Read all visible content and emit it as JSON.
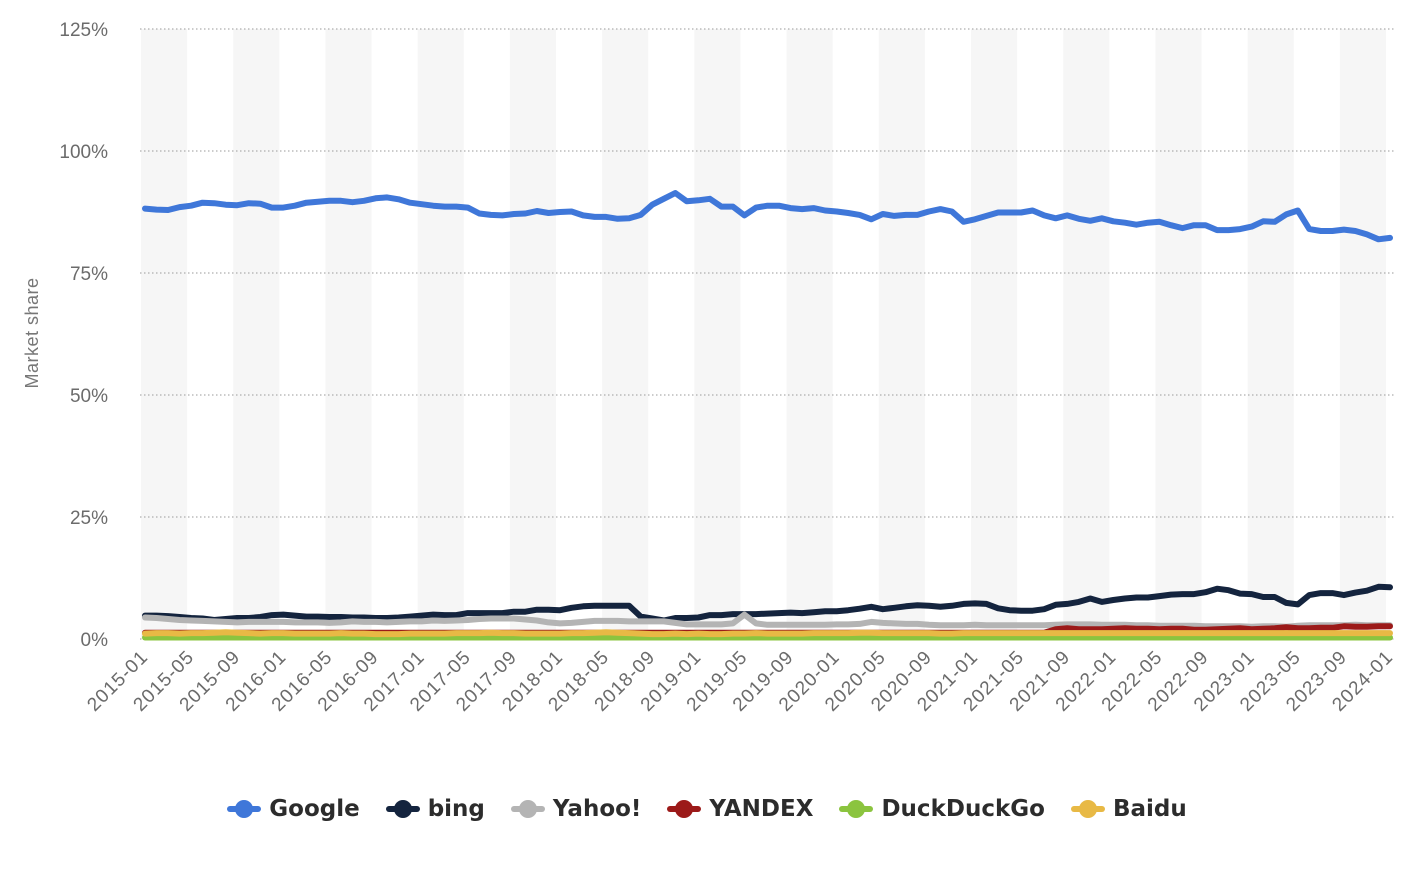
{
  "chart_data": {
    "type": "line",
    "title": "",
    "xlabel": "",
    "ylabel": "Market share",
    "ylim": [
      0,
      125
    ],
    "yticks": [
      "0%",
      "25%",
      "50%",
      "75%",
      "100%",
      "125%"
    ],
    "x_tick_labels": [
      "2015-01",
      "2015-05",
      "2015-09",
      "2016-01",
      "2016-05",
      "2016-09",
      "2017-01",
      "2017-05",
      "2017-09",
      "2018-01",
      "2018-05",
      "2018-09",
      "2019-01",
      "2019-05",
      "2019-09",
      "2020-01",
      "2020-05",
      "2020-09",
      "2021-01",
      "2021-05",
      "2021-09",
      "2022-01",
      "2022-05",
      "2022-09",
      "2023-01",
      "2023-05",
      "2023-09",
      "2024-01"
    ],
    "grid": true,
    "legend_position": "bottom",
    "series": [
      {
        "name": "Google",
        "color": "#3f77d9",
        "values": [
          88.2,
          88.0,
          87.9,
          88.5,
          88.8,
          89.4,
          89.3,
          89.0,
          88.9,
          89.3,
          89.2,
          88.4,
          88.4,
          88.8,
          89.4,
          89.6,
          89.8,
          89.8,
          89.5,
          89.8,
          90.3,
          90.5,
          90.1,
          89.4,
          89.1,
          88.8,
          88.6,
          88.6,
          88.4,
          87.2,
          86.9,
          86.8,
          87.1,
          87.2,
          87.7,
          87.3,
          87.5,
          87.6,
          86.8,
          86.5,
          86.5,
          86.1,
          86.2,
          86.9,
          89.0,
          90.2,
          91.4,
          89.7,
          89.9,
          90.2,
          88.6,
          88.6,
          86.8,
          88.4,
          88.8,
          88.8,
          88.3,
          88.1,
          88.3,
          87.8,
          87.6,
          87.3,
          86.9,
          86.0,
          87.1,
          86.7,
          86.9,
          86.9,
          87.6,
          88.1,
          87.6,
          85.5,
          86.0,
          86.7,
          87.4,
          87.4,
          87.4,
          87.8,
          86.8,
          86.2,
          86.8,
          86.1,
          85.7,
          86.2,
          85.6,
          85.3,
          84.9,
          85.3,
          85.5,
          84.8,
          84.2,
          84.8,
          84.8,
          83.8,
          83.8,
          84.0,
          84.5,
          85.6,
          85.5,
          87.0,
          87.8,
          84.0,
          83.6,
          83.6,
          83.9,
          83.6,
          82.9,
          81.9,
          82.2
        ]
      },
      {
        "name": "bing",
        "color": "#14243e",
        "values": [
          4.8,
          4.8,
          4.7,
          4.5,
          4.3,
          4.2,
          3.9,
          4.1,
          4.3,
          4.3,
          4.5,
          4.9,
          5.0,
          4.8,
          4.6,
          4.6,
          4.5,
          4.5,
          4.4,
          4.4,
          4.3,
          4.3,
          4.4,
          4.6,
          4.8,
          5.0,
          4.9,
          4.9,
          5.3,
          5.3,
          5.3,
          5.3,
          5.6,
          5.6,
          6.0,
          6.0,
          5.9,
          6.4,
          6.7,
          6.8,
          6.8,
          6.8,
          6.8,
          4.6,
          4.2,
          3.8,
          4.3,
          4.3,
          4.4,
          4.9,
          4.9,
          5.1,
          5.1,
          5.1,
          5.2,
          5.3,
          5.4,
          5.3,
          5.5,
          5.7,
          5.7,
          5.9,
          6.2,
          6.6,
          6.1,
          6.4,
          6.7,
          6.9,
          6.8,
          6.6,
          6.8,
          7.2,
          7.3,
          7.2,
          6.3,
          5.9,
          5.8,
          5.8,
          6.1,
          7.0,
          7.2,
          7.6,
          8.3,
          7.6,
          8.0,
          8.3,
          8.5,
          8.5,
          8.8,
          9.1,
          9.2,
          9.2,
          9.6,
          10.3,
          10.0,
          9.3,
          9.2,
          8.6,
          8.6,
          7.4,
          7.1,
          9.0,
          9.4,
          9.4,
          9.0,
          9.5,
          9.9,
          10.7,
          10.6
        ]
      },
      {
        "name": "Yahoo!",
        "color": "#b4b4b4",
        "values": [
          4.4,
          4.3,
          4.1,
          3.9,
          3.8,
          3.7,
          3.6,
          3.5,
          3.4,
          3.5,
          3.5,
          3.5,
          3.5,
          3.4,
          3.4,
          3.4,
          3.3,
          3.4,
          3.6,
          3.5,
          3.5,
          3.4,
          3.5,
          3.6,
          3.6,
          3.8,
          3.7,
          3.8,
          3.9,
          4.1,
          4.2,
          4.2,
          4.2,
          4.0,
          3.8,
          3.4,
          3.2,
          3.3,
          3.5,
          3.7,
          3.7,
          3.7,
          3.6,
          3.6,
          3.6,
          3.6,
          3.3,
          3.0,
          3.0,
          3.0,
          3.0,
          3.2,
          5.0,
          3.2,
          2.9,
          2.9,
          2.9,
          2.9,
          2.9,
          2.9,
          3.0,
          3.0,
          3.1,
          3.5,
          3.3,
          3.2,
          3.1,
          3.1,
          2.9,
          2.8,
          2.8,
          2.8,
          2.9,
          2.8,
          2.8,
          2.8,
          2.8,
          2.8,
          2.8,
          2.9,
          3.0,
          3.0,
          3.0,
          2.9,
          2.9,
          2.9,
          2.8,
          2.8,
          2.7,
          2.7,
          2.7,
          2.7,
          2.6,
          2.6,
          2.6,
          2.6,
          2.5,
          2.6,
          2.6,
          2.5,
          2.7,
          2.8,
          2.8,
          2.8,
          2.8,
          2.9,
          2.8,
          2.8,
          2.8
        ]
      },
      {
        "name": "YANDEX",
        "color": "#9c1a19",
        "values": [
          1.3,
          1.3,
          1.3,
          1.3,
          1.3,
          1.3,
          1.3,
          1.3,
          1.3,
          1.3,
          1.3,
          1.3,
          1.3,
          1.3,
          1.3,
          1.3,
          1.3,
          1.3,
          1.3,
          1.3,
          1.3,
          1.3,
          1.3,
          1.3,
          1.3,
          1.3,
          1.3,
          1.3,
          1.3,
          1.3,
          1.3,
          1.3,
          1.3,
          1.3,
          1.3,
          1.3,
          1.3,
          1.3,
          1.3,
          1.3,
          1.3,
          1.3,
          1.3,
          1.3,
          1.3,
          1.3,
          1.3,
          1.3,
          1.3,
          1.3,
          1.3,
          1.3,
          1.3,
          1.3,
          1.3,
          1.3,
          1.3,
          1.3,
          1.3,
          1.3,
          1.3,
          1.3,
          1.3,
          1.3,
          1.3,
          1.3,
          1.3,
          1.3,
          1.3,
          1.3,
          1.3,
          1.3,
          1.3,
          1.3,
          1.3,
          1.3,
          1.3,
          1.3,
          1.3,
          2.0,
          2.2,
          2.0,
          2.0,
          2.0,
          2.1,
          2.2,
          2.1,
          2.1,
          2.0,
          2.1,
          2.1,
          1.9,
          1.9,
          2.0,
          2.1,
          2.2,
          2.0,
          2.1,
          2.2,
          2.4,
          2.2,
          2.2,
          2.3,
          2.3,
          2.6,
          2.5,
          2.5,
          2.6,
          2.6
        ]
      },
      {
        "name": "DuckDuckGo",
        "color": "#8bc43f",
        "values": [
          0.3,
          0.3,
          0.3,
          0.3,
          0.3,
          0.3,
          0.3,
          0.3,
          0.3,
          0.3,
          0.3,
          0.3,
          0.3,
          0.3,
          0.3,
          0.3,
          0.3,
          0.3,
          0.3,
          0.3,
          0.3,
          0.3,
          0.3,
          0.3,
          0.3,
          0.3,
          0.3,
          0.3,
          0.3,
          0.3,
          0.3,
          0.3,
          0.3,
          0.3,
          0.3,
          0.3,
          0.3,
          0.3,
          0.3,
          0.3,
          0.3,
          0.3,
          0.3,
          0.3,
          0.3,
          0.3,
          0.3,
          0.3,
          0.3,
          0.3,
          0.3,
          0.3,
          0.3,
          0.3,
          0.3,
          0.3,
          0.3,
          0.3,
          0.3,
          0.3,
          0.3,
          0.3,
          0.3,
          0.3,
          0.3,
          0.3,
          0.3,
          0.3,
          0.3,
          0.3,
          0.3,
          0.3,
          0.3,
          0.3,
          0.3,
          0.3,
          0.3,
          0.3,
          0.3,
          0.3,
          0.3,
          0.3,
          0.3,
          0.3,
          0.3,
          0.3,
          0.3,
          0.3,
          0.3,
          0.3,
          0.3,
          0.3,
          0.3,
          0.3,
          0.3,
          0.3,
          0.3,
          0.3,
          0.3,
          0.3,
          0.3,
          0.3,
          0.3,
          0.3,
          0.3,
          0.3,
          0.3,
          0.3,
          0.3
        ]
      },
      {
        "name": "Baidu",
        "color": "#e8b945",
        "values": [
          1.1,
          1.2,
          1.2,
          1.1,
          1.2,
          1.2,
          1.3,
          1.4,
          1.3,
          1.2,
          1.1,
          1.2,
          1.2,
          1.1,
          1.1,
          1.1,
          1.1,
          1.2,
          1.1,
          1.1,
          1.0,
          1.0,
          1.0,
          1.1,
          1.1,
          1.1,
          1.1,
          1.2,
          1.2,
          1.2,
          1.3,
          1.2,
          1.2,
          1.1,
          1.1,
          1.1,
          1.1,
          1.2,
          1.2,
          1.3,
          1.4,
          1.3,
          1.2,
          1.1,
          1.0,
          1.0,
          1.1,
          1.0,
          1.1,
          1.0,
          1.0,
          1.1,
          1.1,
          1.2,
          1.1,
          1.1,
          1.1,
          1.1,
          1.2,
          1.2,
          1.2,
          1.2,
          1.3,
          1.3,
          1.2,
          1.2,
          1.2,
          1.2,
          1.2,
          1.1,
          1.1,
          1.2,
          1.2,
          1.2,
          1.2,
          1.2,
          1.2,
          1.2,
          1.2,
          1.2,
          1.2,
          1.2,
          1.2,
          1.2,
          1.2,
          1.2,
          1.2,
          1.2,
          1.2,
          1.2,
          1.2,
          1.2,
          1.2,
          1.2,
          1.2,
          1.2,
          1.2,
          1.2,
          1.2,
          1.2,
          1.2,
          1.2,
          1.2,
          1.2,
          1.2,
          1.2,
          1.2,
          1.2,
          1.2
        ]
      }
    ]
  }
}
